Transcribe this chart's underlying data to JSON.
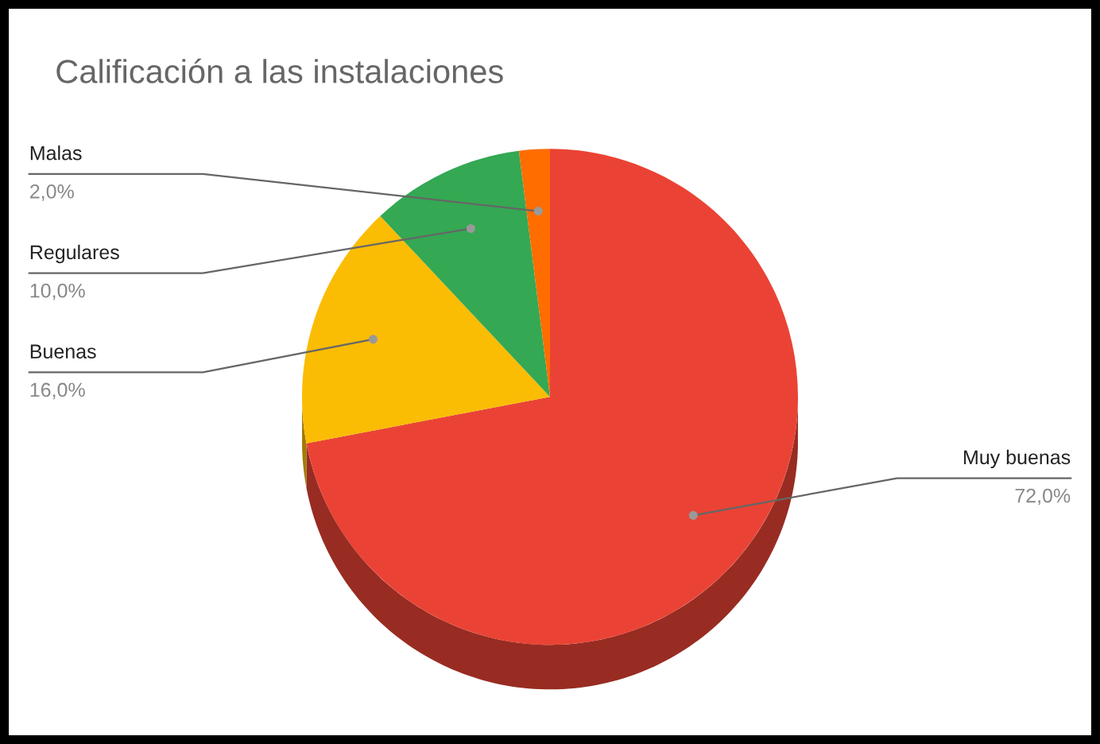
{
  "chart_data": {
    "type": "pie",
    "title": "Calificación a las instalaciones",
    "categories": [
      "Muy buenas",
      "Buenas",
      "Regulares",
      "Malas"
    ],
    "values": [
      72.0,
      16.0,
      10.0,
      2.0
    ],
    "colors": [
      "#ea4335",
      "#fbbc04",
      "#34a853",
      "#ff6d01"
    ],
    "value_labels": [
      "72,0%",
      "16,0%",
      "10,0%",
      "2,0%"
    ],
    "legend": false
  }
}
